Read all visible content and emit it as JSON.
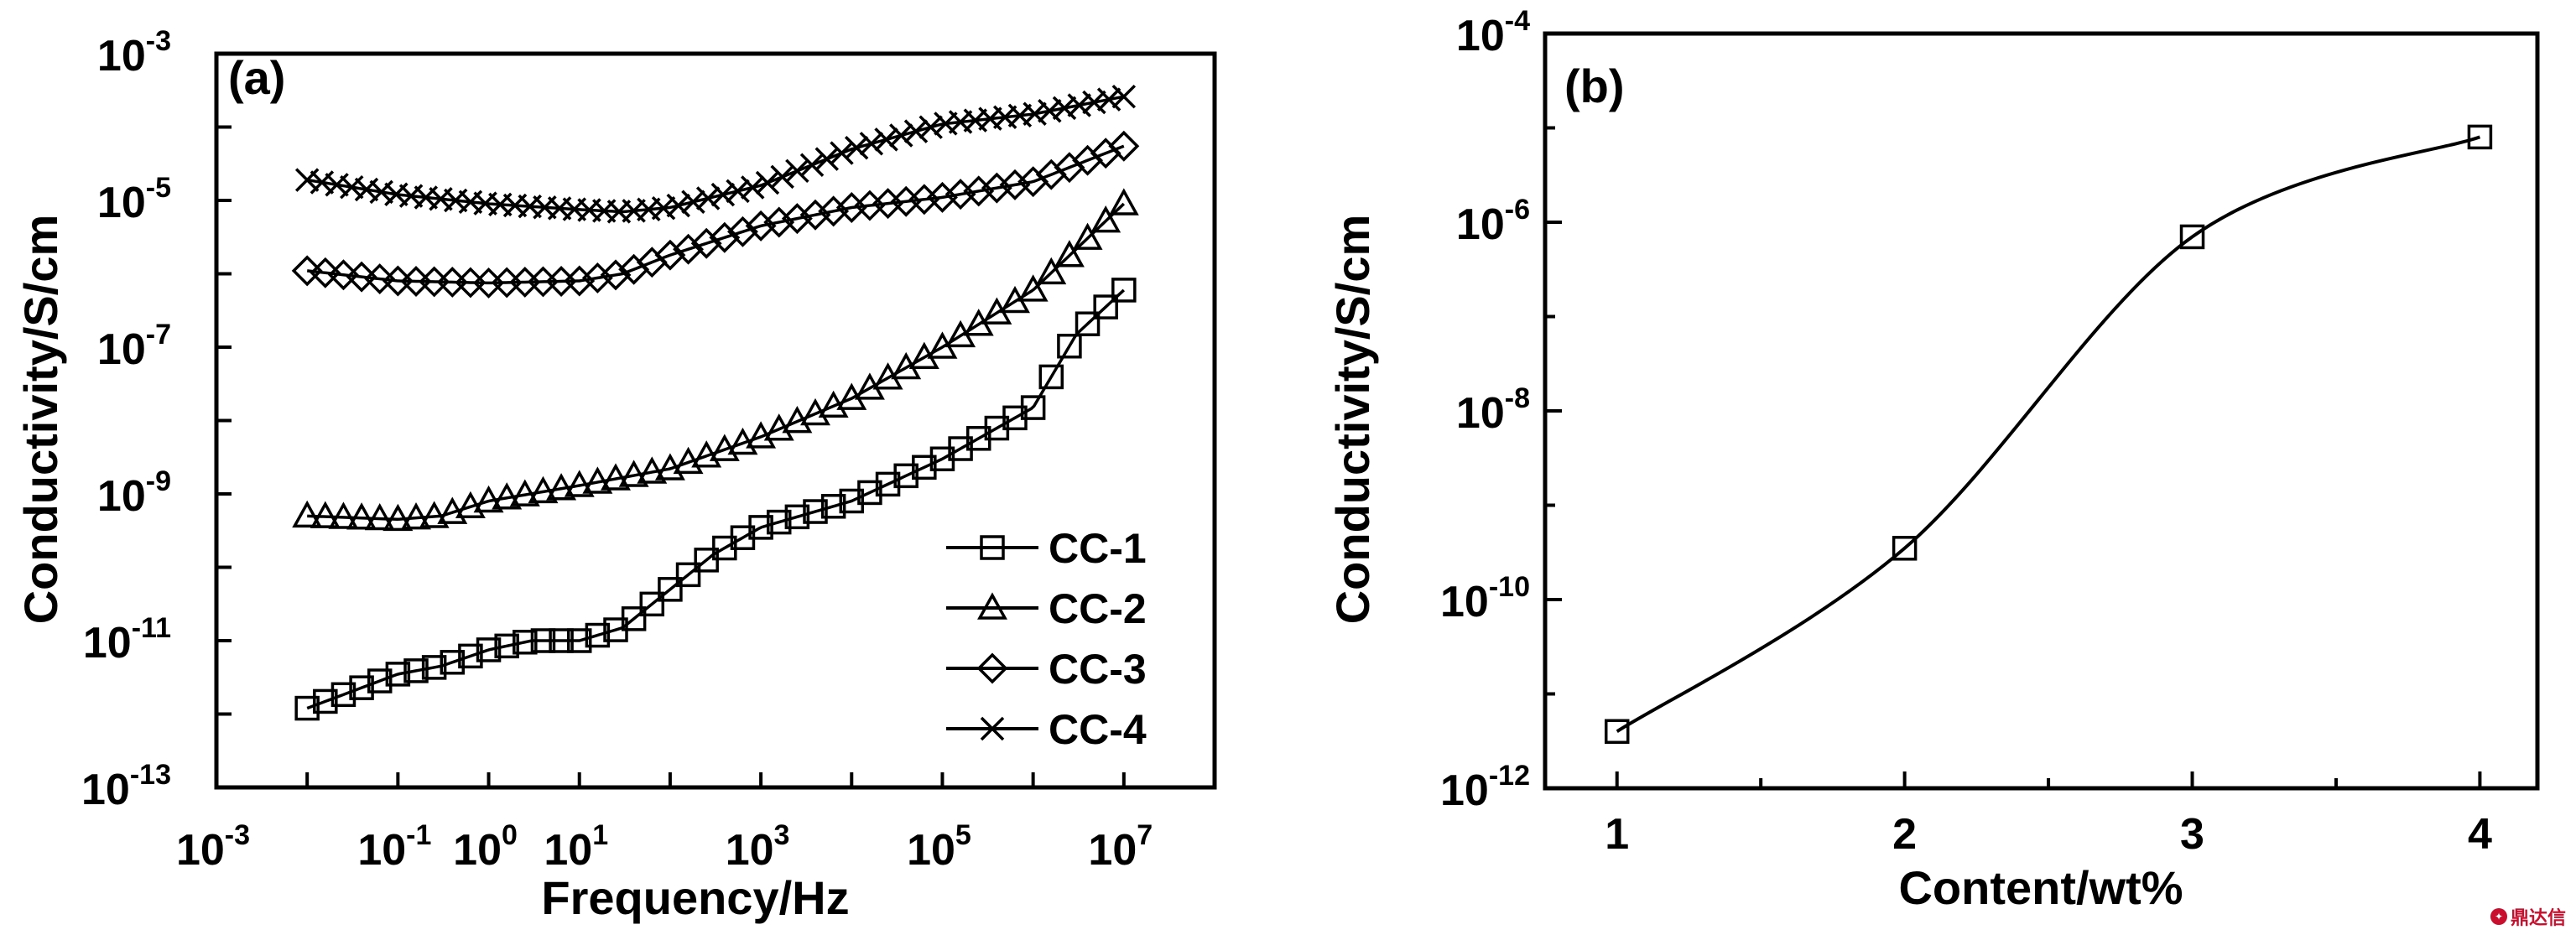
{
  "chart_data": [
    {
      "panel": "(a)",
      "type": "line",
      "xlabel": "Frequency/Hz",
      "ylabel": "Conductivity/S/cm",
      "xscale": "log",
      "yscale": "log",
      "xlim": [
        0.001,
        100000000
      ],
      "ylim": [
        1e-13,
        0.001
      ],
      "x_ticks": [
        {
          "base": "10",
          "exp": "-3",
          "value": 0.001
        },
        {
          "base": "10",
          "exp": "-1",
          "value": 0.1
        },
        {
          "base": "10",
          "exp": "0",
          "value": 1
        },
        {
          "base": "10",
          "exp": "1",
          "value": 10
        },
        {
          "base": "10",
          "exp": "3",
          "value": 1000
        },
        {
          "base": "10",
          "exp": "5",
          "value": 100000
        },
        {
          "base": "10",
          "exp": "7",
          "value": 10000000
        }
      ],
      "y_ticks": [
        {
          "base": "10",
          "exp": "-3",
          "value": 0.001
        },
        {
          "base": "10",
          "exp": "-5",
          "value": 1e-05
        },
        {
          "base": "10",
          "exp": "-7",
          "value": 1e-07
        },
        {
          "base": "10",
          "exp": "-9",
          "value": 1e-09
        },
        {
          "base": "10",
          "exp": "-11",
          "value": 1e-11
        },
        {
          "base": "10",
          "exp": "-13",
          "value": 1e-13
        }
      ],
      "legend_position": "bottom-right",
      "series": [
        {
          "name": "CC-1",
          "marker": "square",
          "points": [
            [
              0.01,
              1.2e-12
            ],
            [
              0.1,
              3.5e-12
            ],
            [
              0.3,
              4.5e-12
            ],
            [
              1,
              7.5e-12
            ],
            [
              3,
              1e-11
            ],
            [
              10,
              1e-11
            ],
            [
              30,
              1.5e-11
            ],
            [
              100,
              5e-11
            ],
            [
              300,
              1.5e-10
            ],
            [
              1000,
              3.5e-10
            ],
            [
              10000,
              8e-10
            ],
            [
              100000,
              3e-09
            ],
            [
              1000000,
              1.5e-08
            ],
            [
              3000000,
              1.5e-07
            ],
            [
              10000000,
              6e-07
            ]
          ]
        },
        {
          "name": "CC-2",
          "marker": "triangle",
          "points": [
            [
              0.01,
              5e-10
            ],
            [
              0.1,
              4.5e-10
            ],
            [
              0.3,
              5e-10
            ],
            [
              1,
              8e-10
            ],
            [
              10,
              1.3e-09
            ],
            [
              100,
              2.2e-09
            ],
            [
              1000,
              6e-09
            ],
            [
              10000,
              2e-08
            ],
            [
              100000,
              1e-07
            ],
            [
              1000000,
              6e-07
            ],
            [
              10000000,
              9e-06
            ]
          ]
        },
        {
          "name": "CC-3",
          "marker": "diamond",
          "points": [
            [
              0.01,
              1.1e-06
            ],
            [
              0.1,
              8e-07
            ],
            [
              1,
              7.5e-07
            ],
            [
              10,
              8e-07
            ],
            [
              30,
              1e-06
            ],
            [
              100,
              1.8e-06
            ],
            [
              1000,
              4.5e-06
            ],
            [
              10000,
              8e-06
            ],
            [
              100000,
              1.1e-05
            ],
            [
              1000000,
              1.8e-05
            ],
            [
              10000000,
              5.5e-05
            ]
          ]
        },
        {
          "name": "CC-4",
          "marker": "x",
          "points": [
            [
              0.01,
              1.9e-05
            ],
            [
              0.1,
              1.2e-05
            ],
            [
              1,
              9e-06
            ],
            [
              10,
              7.5e-06
            ],
            [
              30,
              7e-06
            ],
            [
              100,
              8e-06
            ],
            [
              1000,
              1.6e-05
            ],
            [
              10000,
              5e-05
            ],
            [
              100000,
              0.00011
            ],
            [
              1000000,
              0.00015
            ],
            [
              10000000,
              0.00026
            ]
          ]
        }
      ]
    },
    {
      "panel": "(b)",
      "type": "line",
      "xlabel": "Content/wt%",
      "ylabel": "Conductivity/S/cm",
      "xscale": "linear",
      "yscale": "log",
      "xlim": [
        0.75,
        4.2
      ],
      "ylim": [
        1e-12,
        0.0001
      ],
      "x_ticks": [
        {
          "label": "1",
          "value": 1
        },
        {
          "label": "2",
          "value": 2
        },
        {
          "label": "3",
          "value": 3
        },
        {
          "label": "4",
          "value": 4
        }
      ],
      "y_ticks": [
        {
          "base": "10",
          "exp": "-4",
          "value": 0.0001
        },
        {
          "base": "10",
          "exp": "-6",
          "value": 1e-06
        },
        {
          "base": "10",
          "exp": "-8",
          "value": 1e-08
        },
        {
          "base": "10",
          "exp": "-10",
          "value": 1e-10
        },
        {
          "base": "10",
          "exp": "-12",
          "value": 1e-12
        }
      ],
      "series": [
        {
          "marker": "square",
          "points": [
            [
              1,
              4e-12
            ],
            [
              2,
              3.5e-10
            ],
            [
              3,
              7e-07
            ],
            [
              4,
              8e-06
            ]
          ]
        }
      ]
    }
  ],
  "watermark": "鼎达信"
}
